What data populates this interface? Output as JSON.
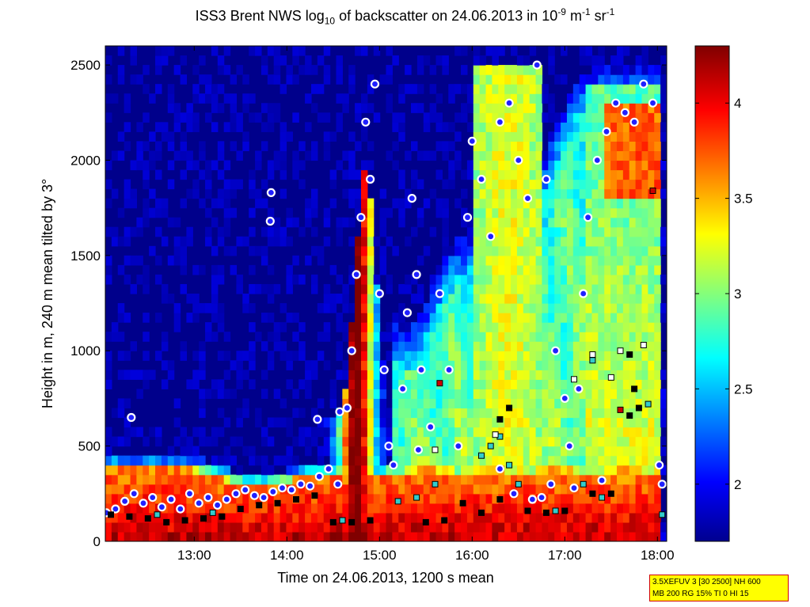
{
  "chart_data": {
    "type": "heatmap",
    "title": {
      "pre": "ISS3 Brent NWS log",
      "sub": "10",
      "mid": " of backscatter on 24.06.2013 in 10",
      "sup1": "-9",
      "mid2": " m",
      "sup2": "-1",
      "mid3": " sr",
      "sup3": "-1"
    },
    "xlabel": "Time on 24.06.2013, 1200 s mean",
    "ylabel": "Height in m, 240 m mean tilted by 3°",
    "xlim_hours": [
      12.04,
      18.1
    ],
    "ylim": [
      0,
      2600
    ],
    "xticks": [
      {
        "label": "13:00",
        "h": 13
      },
      {
        "label": "14:00",
        "h": 14
      },
      {
        "label": "15:00",
        "h": 15
      },
      {
        "label": "16:00",
        "h": 16
      },
      {
        "label": "17:00",
        "h": 17
      },
      {
        "label": "18:00",
        "h": 18
      }
    ],
    "yticks": [
      0,
      500,
      1000,
      1500,
      2000,
      2500
    ],
    "colorbar": {
      "range": [
        1.7,
        4.3
      ],
      "ticks": [
        "2",
        "2.5",
        "3",
        "3.5",
        "4"
      ],
      "colormap": "jet"
    },
    "background_color": "#00008b",
    "series": [
      {
        "marker": "circle",
        "color": "#2020ff",
        "edge": "#ffffff",
        "points": [
          [
            12.05,
            150
          ],
          [
            12.15,
            170
          ],
          [
            12.25,
            210
          ],
          [
            12.35,
            250
          ],
          [
            12.45,
            200
          ],
          [
            12.55,
            230
          ],
          [
            12.65,
            180
          ],
          [
            12.75,
            220
          ],
          [
            12.85,
            170
          ],
          [
            12.95,
            250
          ],
          [
            13.05,
            200
          ],
          [
            13.15,
            230
          ],
          [
            13.25,
            190
          ],
          [
            13.35,
            220
          ],
          [
            13.45,
            250
          ],
          [
            13.55,
            270
          ],
          [
            13.65,
            240
          ],
          [
            13.75,
            230
          ],
          [
            13.85,
            260
          ],
          [
            13.95,
            280
          ],
          [
            14.05,
            270
          ],
          [
            14.15,
            300
          ],
          [
            14.25,
            290
          ],
          [
            14.35,
            340
          ],
          [
            14.45,
            380
          ],
          [
            14.55,
            300
          ],
          [
            14.65,
            700
          ],
          [
            14.7,
            1000
          ],
          [
            14.75,
            1400
          ],
          [
            14.8,
            1700
          ],
          [
            14.85,
            2200
          ],
          [
            14.9,
            1900
          ],
          [
            14.95,
            2400
          ],
          [
            15.0,
            1300
          ],
          [
            15.05,
            900
          ],
          [
            15.1,
            500
          ],
          [
            15.15,
            400
          ],
          [
            15.25,
            800
          ],
          [
            15.3,
            1200
          ],
          [
            15.35,
            1800
          ],
          [
            15.4,
            1400
          ],
          [
            15.45,
            900
          ],
          [
            15.55,
            600
          ],
          [
            15.65,
            1300
          ],
          [
            15.75,
            900
          ],
          [
            15.85,
            500
          ],
          [
            15.95,
            1700
          ],
          [
            16.0,
            2100
          ],
          [
            16.1,
            1900
          ],
          [
            16.2,
            1600
          ],
          [
            16.3,
            2200
          ],
          [
            16.4,
            2300
          ],
          [
            16.5,
            2000
          ],
          [
            16.6,
            1800
          ],
          [
            16.7,
            2500
          ],
          [
            16.8,
            1900
          ],
          [
            16.9,
            1000
          ],
          [
            17.0,
            750
          ],
          [
            17.05,
            500
          ],
          [
            17.15,
            800
          ],
          [
            17.2,
            1300
          ],
          [
            17.25,
            1700
          ],
          [
            17.35,
            2000
          ],
          [
            17.45,
            2150
          ],
          [
            17.55,
            2300
          ],
          [
            17.65,
            2250
          ],
          [
            17.75,
            2200
          ],
          [
            17.85,
            2400
          ],
          [
            17.95,
            2300
          ],
          [
            18.02,
            400
          ],
          [
            18.05,
            300
          ],
          [
            12.32,
            650
          ],
          [
            13.83,
            1830
          ],
          [
            13.82,
            1680
          ],
          [
            14.33,
            640
          ],
          [
            14.57,
            680
          ],
          [
            15.42,
            480
          ],
          [
            16.3,
            380
          ],
          [
            16.45,
            250
          ],
          [
            16.65,
            220
          ],
          [
            16.75,
            230
          ],
          [
            16.85,
            300
          ],
          [
            17.1,
            280
          ],
          [
            17.4,
            320
          ]
        ]
      },
      {
        "marker": "square",
        "color": "#000000",
        "edge": "#000000",
        "points": [
          [
            12.1,
            140
          ],
          [
            12.3,
            130
          ],
          [
            12.5,
            120
          ],
          [
            12.7,
            100
          ],
          [
            12.9,
            110
          ],
          [
            13.1,
            120
          ],
          [
            13.3,
            130
          ],
          [
            13.5,
            170
          ],
          [
            13.7,
            190
          ],
          [
            13.9,
            200
          ],
          [
            14.1,
            220
          ],
          [
            14.3,
            240
          ],
          [
            14.5,
            100
          ],
          [
            14.7,
            100
          ],
          [
            14.9,
            110
          ],
          [
            15.5,
            100
          ],
          [
            15.7,
            110
          ],
          [
            15.9,
            200
          ],
          [
            16.1,
            150
          ],
          [
            16.3,
            220
          ],
          [
            16.6,
            160
          ],
          [
            16.8,
            150
          ],
          [
            17.0,
            160
          ],
          [
            17.3,
            250
          ],
          [
            17.5,
            250
          ],
          [
            17.7,
            980
          ],
          [
            17.75,
            800
          ],
          [
            17.8,
            700
          ],
          [
            16.3,
            640
          ],
          [
            16.4,
            700
          ],
          [
            17.7,
            660
          ]
        ]
      },
      {
        "marker": "square",
        "color": "#33cccc",
        "edge": "#000000",
        "points": [
          [
            12.6,
            140
          ],
          [
            13.2,
            150
          ],
          [
            14.6,
            110
          ],
          [
            15.2,
            210
          ],
          [
            15.4,
            230
          ],
          [
            15.6,
            300
          ],
          [
            16.1,
            450
          ],
          [
            16.2,
            500
          ],
          [
            16.3,
            550
          ],
          [
            16.4,
            400
          ],
          [
            16.5,
            300
          ],
          [
            16.9,
            160
          ],
          [
            17.2,
            300
          ],
          [
            17.4,
            230
          ],
          [
            17.9,
            720
          ],
          [
            18.05,
            140
          ],
          [
            17.3,
            950
          ]
        ]
      },
      {
        "marker": "square",
        "color": "#ffffff",
        "edge": "#000000",
        "points": [
          [
            15.6,
            480
          ],
          [
            16.25,
            560
          ],
          [
            17.1,
            850
          ],
          [
            17.3,
            980
          ],
          [
            17.6,
            1000
          ],
          [
            17.85,
            1030
          ],
          [
            17.5,
            860
          ]
        ]
      },
      {
        "marker": "square",
        "color": "#cc0000",
        "edge": "#000000",
        "points": [
          [
            15.65,
            830
          ],
          [
            17.6,
            690
          ],
          [
            17.95,
            1840
          ]
        ]
      }
    ]
  },
  "info_box": {
    "line1": "3.5XEFUV 3 [30 2500] NH 600",
    "line2": "MB 200 RG 15% TI 0 HI 15"
  }
}
